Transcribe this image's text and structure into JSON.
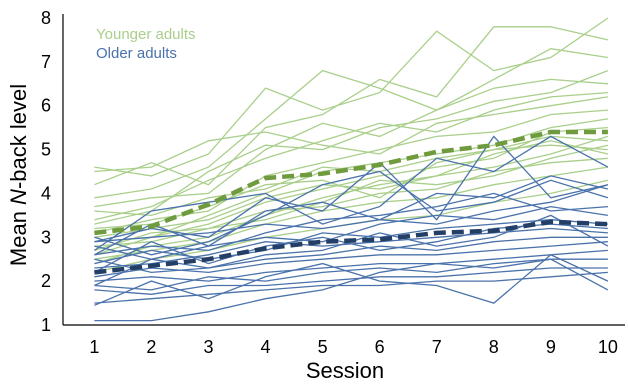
{
  "chart_data": {
    "type": "line",
    "title": "",
    "xlabel": "Session",
    "ylabel_parts": [
      "Mean ",
      "N",
      "-back level"
    ],
    "x": [
      1,
      2,
      3,
      4,
      5,
      6,
      7,
      8,
      9,
      10
    ],
    "xlim": [
      0.45,
      10.3
    ],
    "ylim": [
      1,
      8
    ],
    "y_ticks": [
      1,
      2,
      3,
      4,
      5,
      6,
      7,
      8
    ],
    "grid": false,
    "legend_position": "top-left",
    "colors": {
      "young": "#a9cf8a",
      "old": "#4a72ab",
      "young_mean": "#6f9a3e",
      "old_mean": "#243f66"
    },
    "series": [
      {
        "name": "Younger adults",
        "group": "young",
        "values": [
          3.1,
          3.25,
          3.75,
          4.35,
          4.45,
          4.65,
          4.95,
          5.1,
          5.4,
          5.4
        ]
      },
      {
        "name": "Older adults",
        "group": "old",
        "values": [
          2.2,
          2.35,
          2.5,
          2.75,
          2.9,
          2.95,
          3.1,
          3.15,
          3.35,
          3.3
        ]
      }
    ],
    "individual": {
      "young": [
        [
          4.6,
          4.4,
          4.9,
          6.4,
          5.9,
          6.3,
          7.7,
          6.8,
          7.1,
          8.0
        ],
        [
          4.2,
          4.7,
          4.2,
          5.5,
          5.8,
          6.6,
          6.2,
          7.8,
          7.8,
          7.5
        ],
        [
          3.9,
          4.1,
          4.6,
          5.7,
          6.8,
          6.4,
          5.9,
          6.6,
          7.3,
          7.1
        ],
        [
          3.7,
          3.9,
          4.0,
          5.0,
          5.6,
          5.3,
          5.9,
          6.4,
          6.6,
          6.5
        ],
        [
          3.4,
          3.7,
          4.3,
          4.8,
          5.2,
          5.6,
          5.4,
          5.9,
          6.2,
          6.3
        ],
        [
          3.1,
          3.4,
          3.6,
          4.4,
          4.7,
          5.0,
          5.3,
          5.4,
          5.8,
          5.9
        ],
        [
          2.9,
          3.0,
          3.5,
          4.0,
          4.5,
          4.7,
          4.9,
          5.1,
          5.5,
          5.7
        ],
        [
          2.6,
          3.0,
          3.3,
          3.8,
          4.1,
          4.4,
          4.6,
          4.8,
          5.4,
          5.5
        ],
        [
          2.4,
          2.8,
          3.0,
          3.5,
          3.9,
          4.2,
          4.4,
          4.6,
          4.9,
          5.3
        ],
        [
          3.2,
          3.3,
          3.7,
          4.2,
          4.3,
          3.9,
          4.7,
          5.0,
          5.1,
          5.0
        ],
        [
          2.8,
          2.9,
          3.2,
          3.6,
          3.7,
          4.0,
          4.1,
          4.5,
          4.7,
          4.8
        ],
        [
          4.5,
          4.6,
          5.2,
          5.4,
          5.1,
          4.9,
          5.6,
          5.8,
          6.0,
          6.2
        ],
        [
          3.0,
          3.2,
          3.4,
          3.9,
          4.2,
          4.1,
          4.4,
          4.9,
          5.2,
          4.9
        ],
        [
          2.5,
          2.7,
          2.9,
          3.3,
          3.6,
          3.8,
          3.9,
          4.2,
          4.4,
          4.6
        ],
        [
          3.6,
          3.5,
          3.9,
          4.1,
          4.6,
          4.5,
          4.8,
          5.0,
          5.3,
          5.2
        ],
        [
          2.2,
          2.5,
          2.7,
          3.0,
          3.2,
          3.4,
          3.5,
          3.8,
          4.0,
          4.3
        ],
        [
          3.3,
          3.6,
          4.5,
          5.1,
          5.0,
          5.5,
          5.7,
          6.1,
          6.3,
          6.8
        ],
        [
          2.7,
          3.1,
          3.2,
          3.4,
          3.8,
          4.3,
          4.2,
          4.4,
          4.8,
          5.1
        ]
      ],
      "old": [
        [
          2.9,
          3.2,
          3.0,
          3.9,
          3.6,
          4.7,
          3.4,
          5.3,
          3.9,
          4.2
        ],
        [
          2.7,
          3.6,
          3.8,
          4.0,
          3.3,
          3.7,
          4.8,
          4.5,
          5.3,
          4.6
        ],
        [
          3.0,
          2.6,
          2.9,
          3.5,
          4.2,
          4.5,
          3.6,
          3.8,
          4.3,
          3.9
        ],
        [
          2.6,
          2.8,
          2.7,
          3.1,
          3.4,
          3.5,
          3.7,
          4.0,
          3.6,
          3.7
        ],
        [
          2.8,
          2.5,
          2.8,
          3.0,
          2.9,
          3.3,
          3.5,
          3.4,
          3.7,
          3.5
        ],
        [
          2.4,
          2.7,
          2.5,
          2.7,
          3.1,
          3.0,
          3.2,
          3.3,
          3.4,
          3.3
        ],
        [
          2.3,
          2.4,
          2.6,
          2.9,
          2.8,
          2.9,
          3.0,
          3.1,
          3.2,
          3.1
        ],
        [
          2.5,
          2.2,
          2.3,
          2.5,
          2.6,
          2.8,
          2.7,
          2.9,
          3.0,
          3.0
        ],
        [
          2.1,
          2.3,
          2.2,
          2.4,
          2.5,
          2.6,
          2.6,
          2.7,
          2.8,
          2.9
        ],
        [
          2.0,
          2.1,
          2.0,
          2.2,
          2.3,
          2.4,
          2.4,
          2.5,
          2.6,
          2.7
        ],
        [
          1.9,
          1.8,
          2.1,
          2.0,
          2.2,
          2.3,
          2.2,
          2.4,
          2.5,
          2.5
        ],
        [
          1.8,
          1.7,
          1.9,
          1.9,
          2.0,
          2.1,
          2.1,
          2.2,
          2.3,
          2.3
        ],
        [
          1.5,
          1.6,
          1.7,
          1.8,
          1.9,
          1.9,
          2.0,
          2.0,
          2.1,
          2.2
        ],
        [
          1.45,
          2.0,
          1.6,
          2.1,
          2.4,
          2.0,
          1.9,
          1.5,
          2.6,
          2.0
        ],
        [
          1.1,
          1.1,
          1.3,
          1.6,
          1.8,
          2.2,
          2.4,
          2.3,
          2.5,
          1.8
        ],
        [
          2.9,
          3.0,
          3.1,
          3.3,
          3.2,
          3.4,
          3.3,
          3.6,
          3.8,
          4.2
        ],
        [
          2.2,
          2.9,
          2.4,
          2.8,
          3.0,
          2.7,
          2.9,
          3.2,
          3.3,
          3.2
        ],
        [
          2.6,
          3.3,
          2.8,
          3.6,
          3.8,
          3.4,
          4.0,
          3.9,
          4.4,
          4.1
        ],
        [
          1.9,
          2.5,
          2.3,
          2.6,
          2.7,
          3.1,
          2.8,
          3.0,
          3.5,
          2.8
        ]
      ]
    }
  }
}
